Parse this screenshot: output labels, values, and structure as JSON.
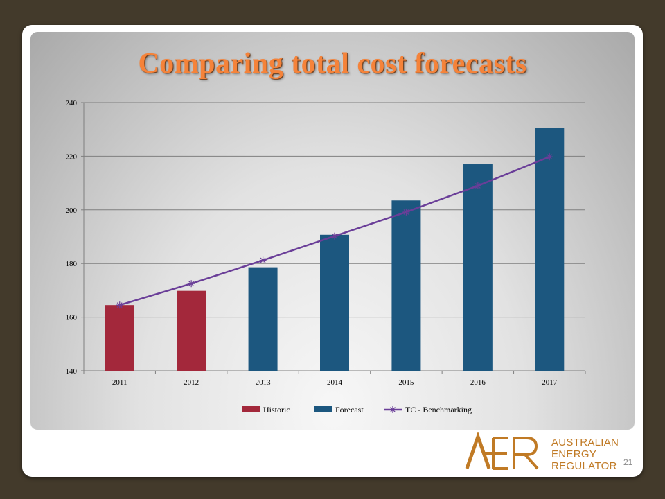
{
  "slide": {
    "title": "Comparing total cost forecasts",
    "page_number": "21"
  },
  "logo": {
    "mark": "AER",
    "line1": "AUSTRALIAN",
    "line2": "ENERGY",
    "line3": "REGULATOR"
  },
  "colors": {
    "historic": "#a3283b",
    "forecast": "#1c577f",
    "benchmark": "#6a3e98",
    "title": "#f5833a",
    "logo": "#c07a25"
  },
  "chart_data": {
    "type": "bar",
    "categories": [
      "2011",
      "2012",
      "2013",
      "2014",
      "2015",
      "2016",
      "2017"
    ],
    "series": [
      {
        "name": "Historic",
        "type": "bar",
        "values": [
          164.5,
          169.8,
          null,
          null,
          null,
          null,
          null
        ]
      },
      {
        "name": "Forecast",
        "type": "bar",
        "values": [
          null,
          null,
          178.6,
          190.7,
          203.5,
          217.0,
          230.6
        ]
      },
      {
        "name": "TC - Benchmarking",
        "type": "line",
        "marker": "asterisk",
        "values": [
          164.5,
          172.5,
          181.2,
          190.2,
          199.2,
          209.0,
          219.8
        ]
      }
    ],
    "ylim": [
      140,
      240
    ],
    "yticks": [
      "140",
      "160",
      "180",
      "200",
      "220",
      "240"
    ],
    "grid": true,
    "legend": "bottom",
    "title": "",
    "xlabel": "",
    "ylabel": ""
  }
}
